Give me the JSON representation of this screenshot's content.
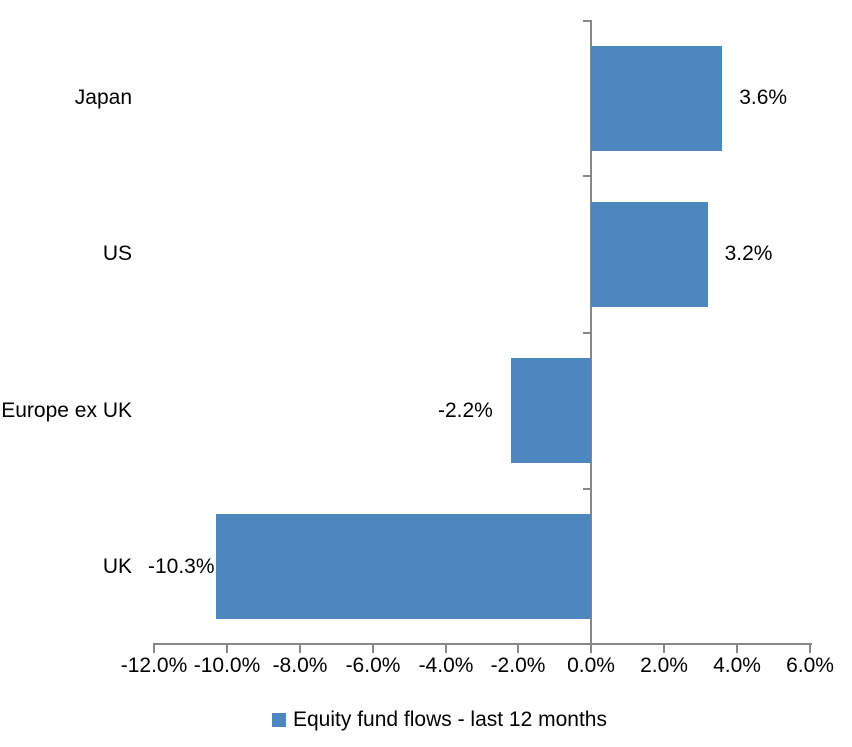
{
  "chart_data": {
    "type": "bar",
    "orientation": "horizontal",
    "title": "",
    "categories": [
      "Japan",
      "US",
      "Europe ex UK",
      "UK"
    ],
    "values": [
      3.6,
      3.2,
      -2.2,
      -10.3
    ],
    "value_labels": [
      "3.6%",
      "3.2%",
      "-2.2%",
      "-10.3%"
    ],
    "x_axis": {
      "min": -12,
      "max": 6,
      "step": 2,
      "tick_labels": [
        "-12.0%",
        "-10.0%",
        "-8.0%",
        "-6.0%",
        "-4.0%",
        "-2.0%",
        "0.0%",
        "2.0%",
        "4.0%",
        "6.0%"
      ]
    },
    "grid": false,
    "legend": {
      "position": "bottom",
      "entries": [
        {
          "label": "Equity fund flows - last 12 months",
          "color": "#4e87be"
        }
      ]
    },
    "colors": {
      "bar": "#4e87be",
      "axis": "#878787",
      "text": "#000000",
      "background": "#ffffff"
    }
  }
}
